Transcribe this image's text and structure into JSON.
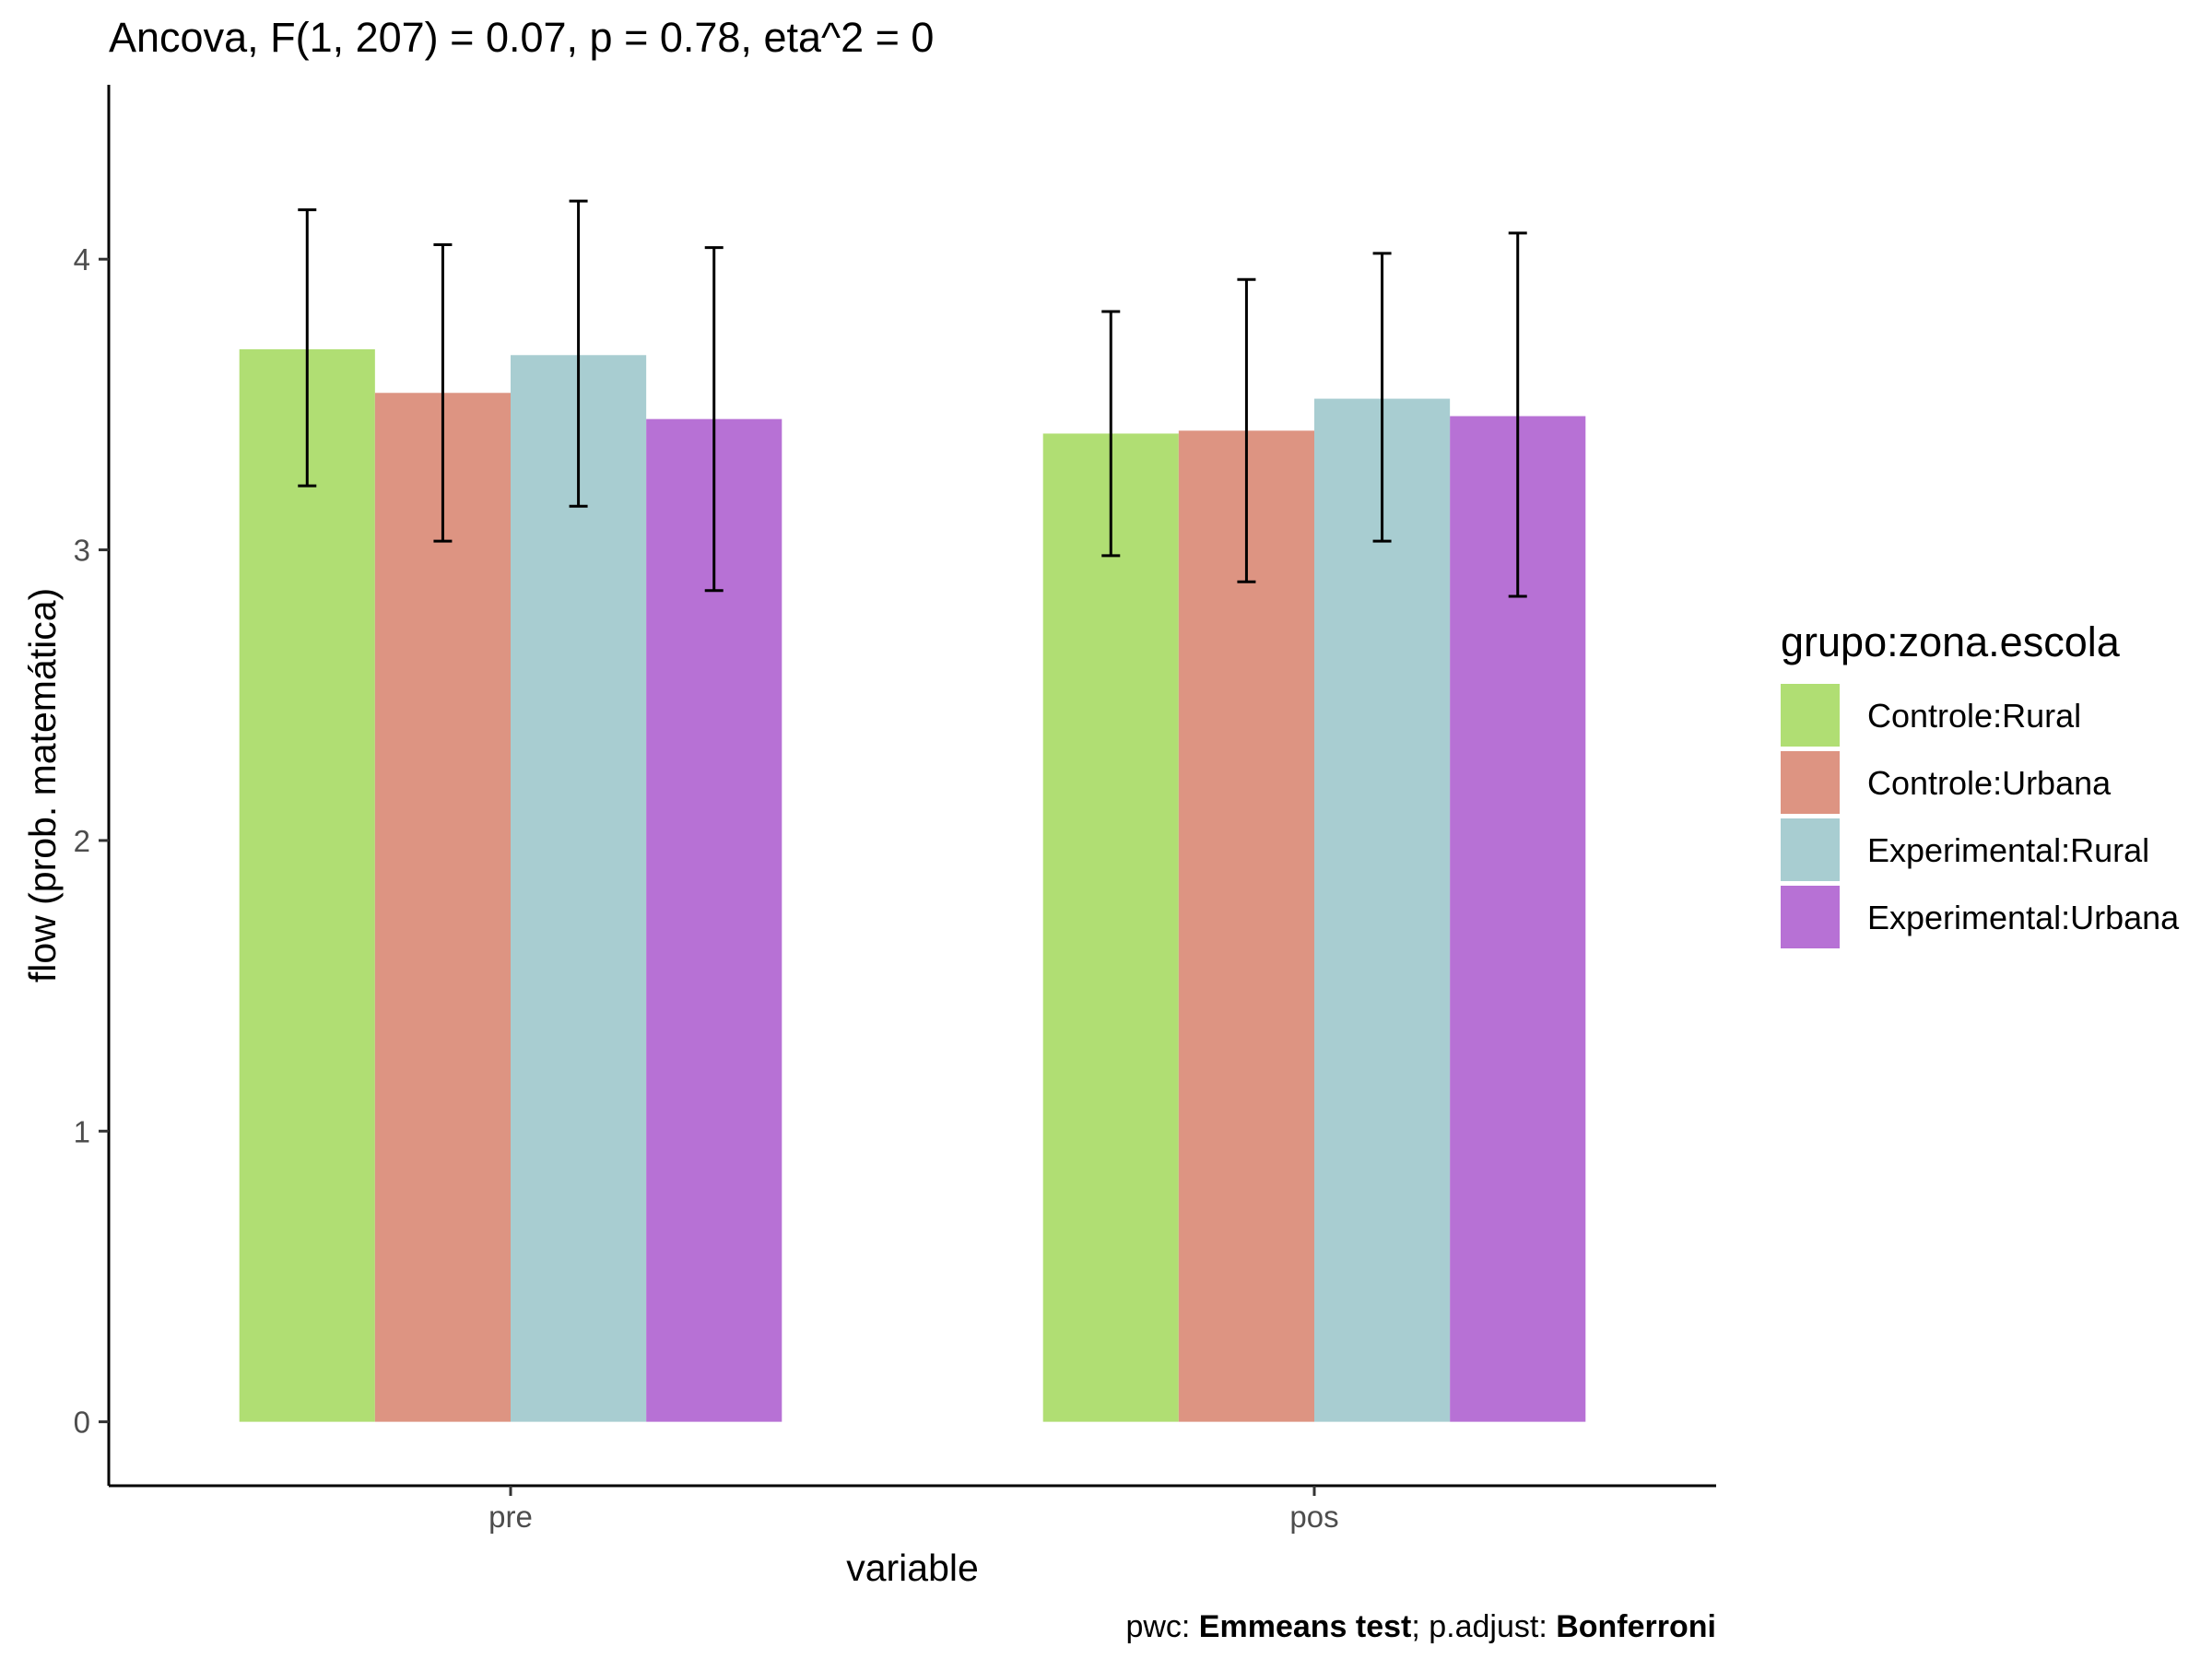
{
  "chart_data": {
    "type": "bar",
    "title": "Ancova, F(1, 207) = 0.07, p = 0.78, eta^2 = 0",
    "xlabel": "variable",
    "ylabel": "flow (prob. matemática)",
    "categories": [
      "pre",
      "pos"
    ],
    "ylim": [
      -0.22,
      4.6
    ],
    "yticks": [
      "0",
      "1",
      "2",
      "3",
      "4"
    ],
    "grid": false,
    "legend": {
      "title": "grupo:zona.escola",
      "position": "right"
    },
    "series": [
      {
        "name": "Controle:Rural",
        "color": "#b0de73",
        "values": [
          3.69,
          3.4
        ],
        "err_low": [
          3.22,
          2.98
        ],
        "err_high": [
          4.17,
          3.82
        ]
      },
      {
        "name": "Controle:Urbana",
        "color": "#dd9482",
        "values": [
          3.54,
          3.41
        ],
        "err_low": [
          3.03,
          2.89
        ],
        "err_high": [
          4.05,
          3.93
        ]
      },
      {
        "name": "Experimental:Rural",
        "color": "#a8cdd1",
        "values": [
          3.67,
          3.52
        ],
        "err_low": [
          3.15,
          3.03
        ],
        "err_high": [
          4.2,
          4.02
        ]
      },
      {
        "name": "Experimental:Urbana",
        "color": "#b771d5",
        "values": [
          3.45,
          3.46
        ],
        "err_low": [
          2.86,
          2.84
        ],
        "err_high": [
          4.04,
          4.09
        ]
      }
    ],
    "caption": {
      "prefix": "pwc: ",
      "test": "Emmeans test",
      "middle": "; p.adjust: ",
      "method": "Bonferroni"
    }
  }
}
